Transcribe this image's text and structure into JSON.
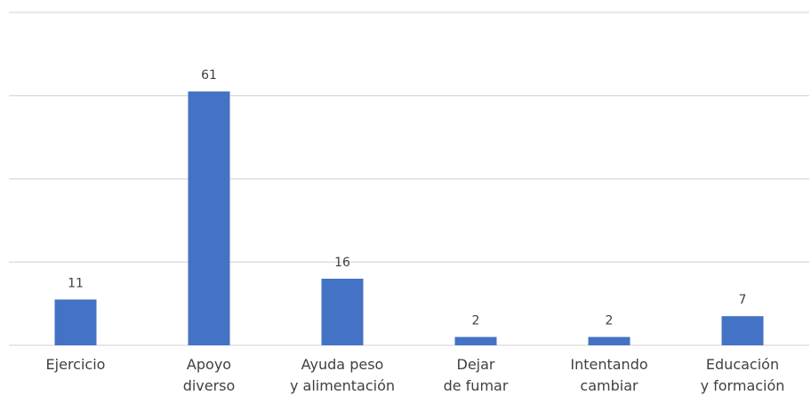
{
  "chart_data": {
    "type": "bar",
    "categories": [
      [
        "Ejercicio"
      ],
      [
        "Apoyo",
        "diverso"
      ],
      [
        "Ayuda peso",
        "y alimentación"
      ],
      [
        "Dejar",
        "de fumar"
      ],
      [
        "Intentando",
        "cambiar"
      ],
      [
        "Educación",
        "y formación"
      ]
    ],
    "values": [
      11,
      61,
      16,
      2,
      2,
      7
    ],
    "ylim": [
      0,
      80
    ],
    "grid": true,
    "bar_color": "#4472C4",
    "data_labels": true
  }
}
